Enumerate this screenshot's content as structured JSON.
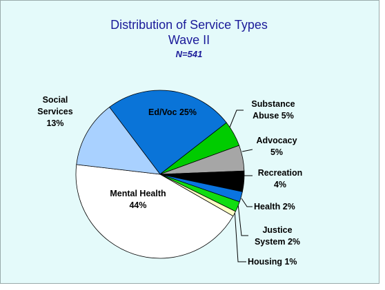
{
  "chart_data": {
    "type": "pie",
    "title": "Distribution of Service Types",
    "subtitle": "Wave II",
    "annotation": "N=541",
    "categories": [
      "Ed/Voc",
      "Substance Abuse",
      "Advocacy",
      "Recreation",
      "Health",
      "Justice System",
      "Housing",
      "Mental Health",
      "Social Services"
    ],
    "values": [
      25,
      5,
      5,
      4,
      2,
      2,
      1,
      44,
      13
    ],
    "value_labels": [
      "25%",
      "5%",
      "5%",
      "4%",
      "2%",
      "2%",
      "1%",
      "44%",
      "13%"
    ],
    "colors": [
      "#0a74d8",
      "#00cc00",
      "#a6a6a6",
      "#000000",
      "#0a74e0",
      "#11dd11",
      "#ffffc4",
      "#ffffff",
      "#a9d1ff"
    ]
  }
}
